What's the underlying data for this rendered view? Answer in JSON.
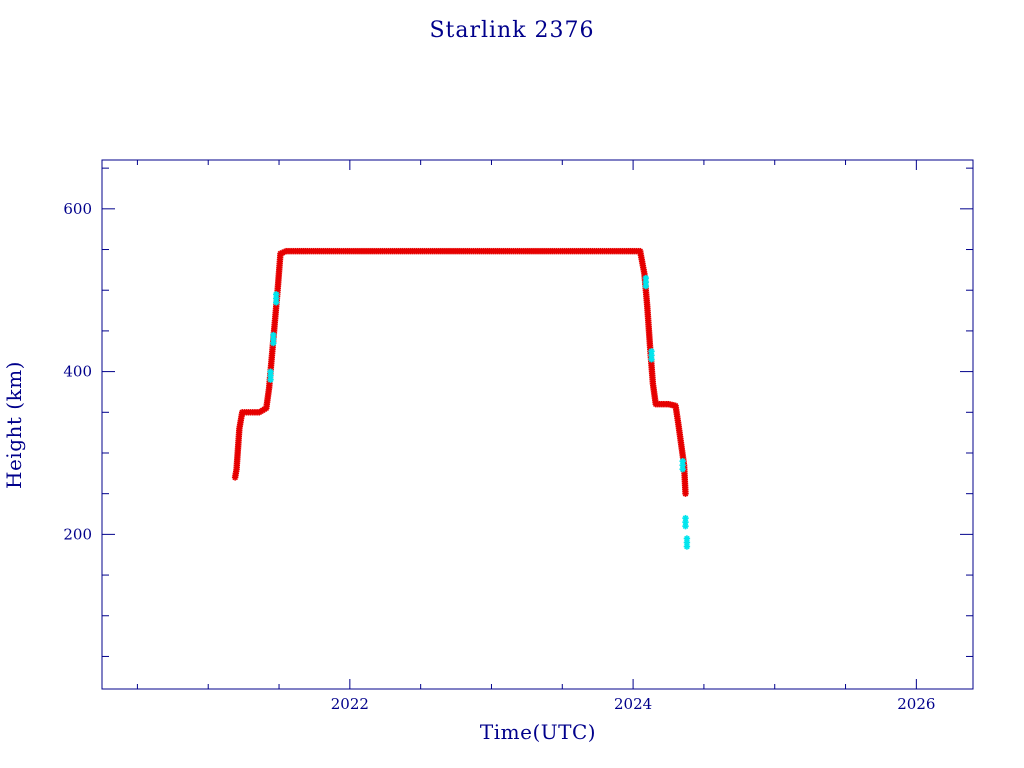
{
  "chart_data": {
    "type": "scatter",
    "title": "Starlink 2376",
    "xlabel": "Time(UTC)",
    "ylabel": "Height (km)",
    "xlim": [
      2020.25,
      2026.4
    ],
    "ylim": [
      10,
      660
    ],
    "xticks": [
      {
        "value": 2022,
        "label": "2022"
      },
      {
        "value": 2024,
        "label": "2024"
      },
      {
        "value": 2026,
        "label": "2026"
      }
    ],
    "yticks": [
      {
        "value": 200,
        "label": "200"
      },
      {
        "value": 400,
        "label": "400"
      },
      {
        "value": 600,
        "label": "600"
      }
    ],
    "grid": false,
    "legend": "none",
    "colors": {
      "axes": "#00008b",
      "series_primary": "#e60000",
      "series_secondary": "#00e5ee",
      "line": "#333333"
    },
    "series": [
      {
        "marker": "asterisk",
        "color": "#e60000",
        "x": [
          2021.19,
          2021.2,
          2021.21,
          2021.22,
          2021.24,
          2021.3,
          2021.36,
          2021.41,
          2021.43,
          2021.45,
          2021.47,
          2021.49,
          2021.51,
          2021.55,
          2021.7,
          2021.9,
          2022.1,
          2022.3,
          2022.5,
          2022.7,
          2022.9,
          2023.1,
          2023.3,
          2023.5,
          2023.7,
          2023.9,
          2024.05,
          2024.08,
          2024.1,
          2024.12,
          2024.14,
          2024.16,
          2024.2,
          2024.25,
          2024.3,
          2024.32,
          2024.34,
          2024.36,
          2024.37
        ],
        "y": [
          270,
          280,
          305,
          330,
          350,
          350,
          350,
          355,
          380,
          420,
          460,
          500,
          545,
          548,
          548,
          548,
          548,
          548,
          548,
          548,
          548,
          548,
          548,
          548,
          548,
          548,
          548,
          520,
          480,
          430,
          385,
          360,
          360,
          360,
          358,
          335,
          310,
          285,
          250
        ]
      },
      {
        "marker": "asterisk",
        "color": "#00e5ee",
        "x": [
          2021.44,
          2021.46,
          2021.48,
          2024.09,
          2024.13,
          2024.35,
          2024.37,
          2024.38
        ],
        "y": [
          395,
          440,
          490,
          510,
          420,
          285,
          215,
          190
        ]
      }
    ]
  }
}
